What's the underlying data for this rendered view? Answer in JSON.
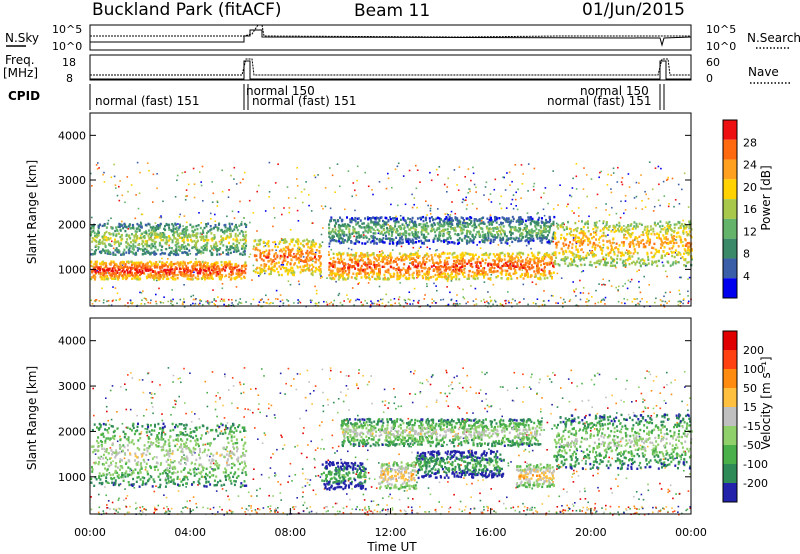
{
  "header": {
    "station": "Buckland Park (fitACF)",
    "beam": "Beam 11",
    "date": "01/Jun/2015"
  },
  "strip": {
    "nsky_label": "N.Sky",
    "nsearch_label": "N.Search",
    "nsky_ticks": [
      "10^5",
      "10^0"
    ],
    "freq_label": "Freq.",
    "freq_unit": "[MHz]",
    "freq_ticks": [
      "18",
      "8"
    ],
    "nave_label": "Nave",
    "nave_ticks": [
      "60",
      "0"
    ],
    "cpid_label": "CPID",
    "cpid_segments": [
      {
        "label": "normal (fast) 151"
      },
      {
        "label": "normal 150"
      },
      {
        "label": "normal (fast) 151"
      },
      {
        "label": "normal (fast) 151"
      },
      {
        "label": "normal 150"
      }
    ]
  },
  "chart_data": [
    {
      "type": "heatmap",
      "panel": "power",
      "ylabel": "Slant Range [km]",
      "xlabel": "",
      "ylim": [
        180,
        4500
      ],
      "yticks": [
        1000,
        2000,
        3000,
        4000
      ],
      "xlim_hours": [
        0,
        24
      ],
      "colorbar_label": "Power [dB]",
      "colorbar_ticks": [
        "28",
        "24",
        "20",
        "16",
        "12",
        "8",
        "4"
      ],
      "colorbar_colors": [
        "#0000ee",
        "#3a5ea8",
        "#3a8a6a",
        "#63b36a",
        "#a7c84a",
        "#ffd200",
        "#ffa020",
        "#ff6a10",
        "#ee1010"
      ],
      "bands": [
        {
          "t0": 0.0,
          "t1": 6.2,
          "center": 1700,
          "width": 350,
          "level": 0.55
        },
        {
          "t0": 0.0,
          "t1": 6.2,
          "center": 1000,
          "width": 200,
          "level": 0.95
        },
        {
          "t0": 6.5,
          "t1": 9.2,
          "center": 1300,
          "width": 400,
          "level": 0.85
        },
        {
          "t0": 9.5,
          "t1": 18.5,
          "center": 1100,
          "width": 300,
          "level": 0.9
        },
        {
          "t0": 9.5,
          "t1": 18.5,
          "center": 1900,
          "width": 300,
          "level": 0.45
        },
        {
          "t0": 18.5,
          "t1": 24.0,
          "center": 1600,
          "width": 500,
          "level": 0.75
        }
      ]
    },
    {
      "type": "heatmap",
      "panel": "velocity",
      "ylabel": "Slant Range [km]",
      "xlabel": "Time UT",
      "ylim": [
        180,
        4500
      ],
      "yticks": [
        1000,
        2000,
        3000,
        4000
      ],
      "xlim_hours": [
        0,
        24
      ],
      "xticks": [
        "00:00",
        "04:00",
        "08:00",
        "12:00",
        "16:00",
        "20:00",
        "00:00"
      ],
      "colorbar_label": "Velocity [m s⁻¹]",
      "colorbar_ticks": [
        "200",
        "100",
        "50",
        "15",
        "-15",
        "-50",
        "-100",
        "-200"
      ],
      "colorbar_colors": [
        "#2222aa",
        "#2e8b57",
        "#4ab04a",
        "#8fd06a",
        "#c0c0c0",
        "#ffc040",
        "#ff8c10",
        "#ff4010",
        "#e00000"
      ],
      "bands": [
        {
          "t0": 0.0,
          "t1": 6.2,
          "center": 1500,
          "width": 700,
          "level": 0.5
        },
        {
          "t0": 9.2,
          "t1": 11.0,
          "center": 1050,
          "width": 300,
          "level": 0.3
        },
        {
          "t0": 11.5,
          "t1": 13.0,
          "center": 1050,
          "width": 300,
          "level": 0.65
        },
        {
          "t0": 13.0,
          "t1": 16.5,
          "center": 1300,
          "width": 300,
          "level": 0.3
        },
        {
          "t0": 17.0,
          "t1": 18.5,
          "center": 1050,
          "width": 250,
          "level": 0.65
        },
        {
          "t0": 18.5,
          "t1": 24.0,
          "center": 1800,
          "width": 600,
          "level": 0.45
        },
        {
          "t0": 10.0,
          "t1": 18.0,
          "center": 2000,
          "width": 300,
          "level": 0.5
        }
      ]
    }
  ]
}
